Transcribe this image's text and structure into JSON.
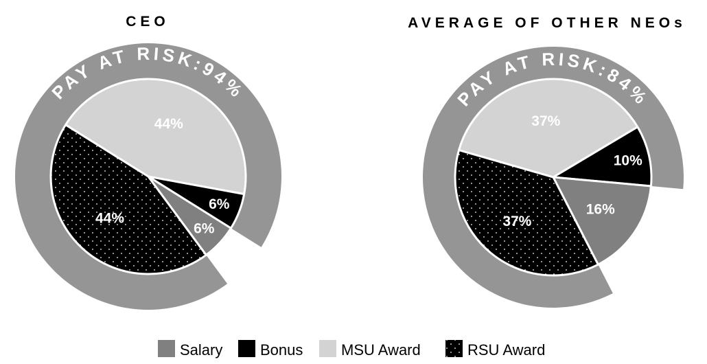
{
  "chart_data": [
    {
      "type": "pie",
      "title": "CEO",
      "ring_label": "PAY AT RISK:94%",
      "pay_at_risk_percent": 94,
      "categories": [
        "MSU Award",
        "Bonus",
        "Salary",
        "RSU Award"
      ],
      "values": [
        44,
        6,
        6,
        44
      ],
      "labels": [
        "44%",
        "6%",
        "6%",
        "44%"
      ]
    },
    {
      "type": "pie",
      "title": "AVERAGE OF OTHER NEOs",
      "ring_label": "PAY AT RISK:84%",
      "pay_at_risk_percent": 84,
      "categories": [
        "MSU Award",
        "Bonus",
        "Salary",
        "RSU Award"
      ],
      "values": [
        37,
        10,
        16,
        37
      ],
      "labels": [
        "37%",
        "10%",
        "16%",
        "37%"
      ]
    }
  ],
  "legend": [
    {
      "name": "Salary",
      "color": "#808080",
      "pattern": "solid"
    },
    {
      "name": "Bonus",
      "color": "#000000",
      "pattern": "solid"
    },
    {
      "name": "MSU Award",
      "color": "#d3d3d3",
      "pattern": "solid"
    },
    {
      "name": "RSU Award",
      "color": "#000000",
      "pattern": "dots"
    }
  ],
  "colors": {
    "ring": "#959595",
    "salary": "#808080",
    "bonus": "#000000",
    "msu": "#d3d3d3",
    "rsu": "#000000",
    "dots": "#ffffff"
  }
}
